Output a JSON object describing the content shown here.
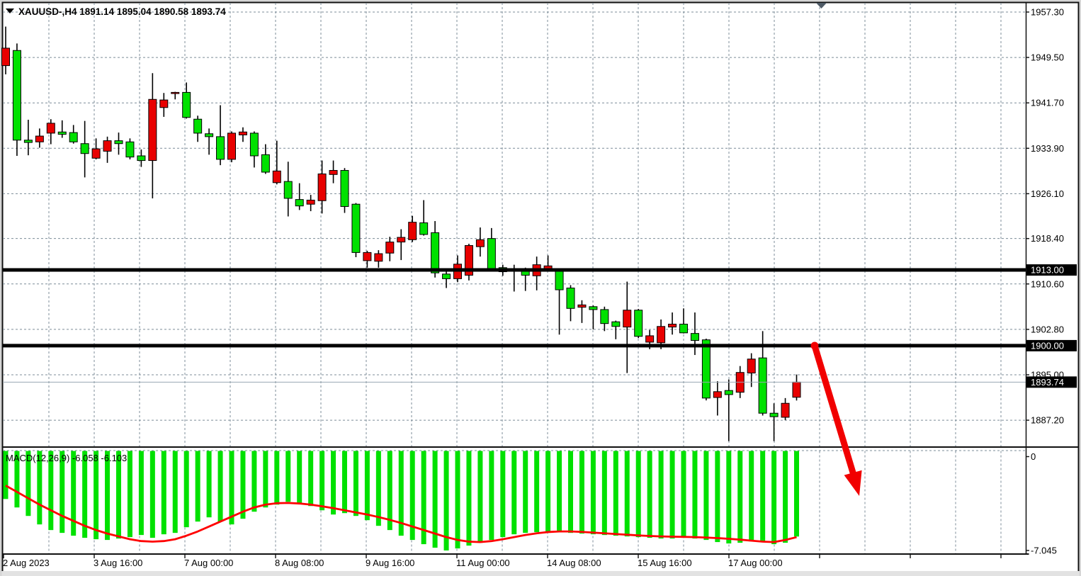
{
  "window": {
    "title_text": "XAUUSD-,H4  1891.14 1895.04 1890.58 1893.74"
  },
  "chart_data": {
    "type": "candlestick",
    "symbol": "XAUUSD-",
    "timeframe": "H4",
    "title_text": "XAUUSD-,H4  1891.14 1895.04 1890.58 1893.74",
    "current_bar": {
      "open": 1891.14,
      "high": 1895.04,
      "low": 1890.58,
      "close": 1893.74
    },
    "price_axis": {
      "ticks": [
        "1957.30",
        "1949.50",
        "1941.70",
        "1933.90",
        "1926.10",
        "1918.40",
        "1910.60",
        "1902.80",
        "1895.00",
        "1887.20"
      ],
      "tags": [
        {
          "value": 1913.0,
          "label": "1913.00"
        },
        {
          "value": 1900.0,
          "label": "1900.00"
        },
        {
          "value": 1893.74,
          "label": "1893.74"
        }
      ]
    },
    "time_axis": {
      "labels": [
        "2 Aug 2023",
        "3 Aug 16:00",
        "7 Aug 00:00",
        "8 Aug 08:00",
        "9 Aug 16:00",
        "11 Aug 00:00",
        "14 Aug 08:00",
        "15 Aug 16:00",
        "17 Aug 00:00"
      ]
    },
    "hlines": [
      1913.0,
      1900.0
    ],
    "bid_line": 1893.74,
    "annotation": {
      "type": "down-arrow",
      "from_price": 1900.0,
      "note": "red arrow pointing down from 1900 level"
    },
    "candles_format": [
      "open",
      "high",
      "low",
      "close"
    ],
    "candles": [
      [
        1948.1,
        1954.8,
        1946.6,
        1951.1
      ],
      [
        1950.7,
        1951.9,
        1932.6,
        1935.3
      ],
      [
        1935.3,
        1938.8,
        1932.7,
        1934.9
      ],
      [
        1935.0,
        1937.3,
        1934.0,
        1936.0
      ],
      [
        1936.5,
        1938.9,
        1934.6,
        1938.2
      ],
      [
        1936.7,
        1938.7,
        1935.7,
        1936.3
      ],
      [
        1936.6,
        1937.9,
        1934.7,
        1935.0
      ],
      [
        1934.7,
        1938.6,
        1928.9,
        1933.0
      ],
      [
        1932.2,
        1935.6,
        1932.0,
        1933.8
      ],
      [
        1933.4,
        1935.9,
        1931.4,
        1935.2
      ],
      [
        1935.2,
        1936.6,
        1932.8,
        1934.7
      ],
      [
        1935.0,
        1935.6,
        1932.0,
        1932.4
      ],
      [
        1932.6,
        1933.7,
        1930.7,
        1931.8
      ],
      [
        1931.8,
        1946.8,
        1925.3,
        1942.3
      ],
      [
        1940.9,
        1943.4,
        1939.3,
        1942.2
      ],
      [
        1943.3,
        1943.6,
        1942.3,
        1943.5
      ],
      [
        1943.5,
        1945.2,
        1939.0,
        1939.2
      ],
      [
        1938.9,
        1939.5,
        1935.0,
        1936.5
      ],
      [
        1936.4,
        1937.3,
        1932.8,
        1935.9
      ],
      [
        1935.9,
        1941.3,
        1931.0,
        1932.0
      ],
      [
        1932.0,
        1936.8,
        1931.5,
        1936.5
      ],
      [
        1936.2,
        1937.5,
        1935.0,
        1936.7
      ],
      [
        1936.5,
        1936.8,
        1930.6,
        1932.6
      ],
      [
        1932.8,
        1934.6,
        1929.5,
        1929.8
      ],
      [
        1928.0,
        1935.2,
        1927.7,
        1930.0
      ],
      [
        1928.2,
        1931.6,
        1922.2,
        1925.3
      ],
      [
        1925.1,
        1927.9,
        1923.3,
        1924.0
      ],
      [
        1924.3,
        1925.9,
        1923.1,
        1925.0
      ],
      [
        1924.9,
        1931.8,
        1922.7,
        1929.5
      ],
      [
        1929.4,
        1931.8,
        1927.9,
        1930.1
      ],
      [
        1930.1,
        1930.5,
        1922.8,
        1923.9
      ],
      [
        1924.3,
        1924.5,
        1915.2,
        1916.0
      ],
      [
        1914.6,
        1916.3,
        1913.4,
        1916.0
      ],
      [
        1914.5,
        1916.4,
        1913.4,
        1915.8
      ],
      [
        1915.9,
        1918.7,
        1914.5,
        1917.8
      ],
      [
        1917.8,
        1920.0,
        1914.7,
        1918.6
      ],
      [
        1918.2,
        1922.3,
        1917.8,
        1921.2
      ],
      [
        1921.1,
        1925.0,
        1918.9,
        1919.1
      ],
      [
        1919.4,
        1921.4,
        1911.7,
        1912.5
      ],
      [
        1912.3,
        1912.8,
        1909.9,
        1911.5
      ],
      [
        1911.5,
        1915.5,
        1910.9,
        1914.0
      ],
      [
        1912.1,
        1917.5,
        1911.2,
        1917.2
      ],
      [
        1917.0,
        1920.3,
        1915.3,
        1918.2
      ],
      [
        1918.4,
        1920.2,
        1912.8,
        1913.1
      ],
      [
        1913.4,
        1913.9,
        1912.0,
        1912.7
      ],
      [
        1912.9,
        1913.9,
        1909.3,
        1913.2
      ],
      [
        1913.0,
        1913.4,
        1909.4,
        1912.1
      ],
      [
        1912.0,
        1915.3,
        1909.5,
        1913.9
      ],
      [
        1913.1,
        1915.5,
        1912.7,
        1913.7
      ],
      [
        1913.1,
        1913.3,
        1901.9,
        1909.6
      ],
      [
        1909.9,
        1910.4,
        1904.2,
        1906.4
      ],
      [
        1906.6,
        1907.8,
        1903.9,
        1907.0
      ],
      [
        1906.7,
        1906.9,
        1902.8,
        1906.2
      ],
      [
        1906.2,
        1906.7,
        1902.5,
        1903.8
      ],
      [
        1904.1,
        1904.3,
        1901.1,
        1903.3
      ],
      [
        1903.2,
        1911.0,
        1895.3,
        1906.1
      ],
      [
        1906.1,
        1906.3,
        1901.3,
        1901.6
      ],
      [
        1900.6,
        1902.7,
        1899.4,
        1901.7
      ],
      [
        1900.5,
        1904.5,
        1899.4,
        1903.3
      ],
      [
        1903.2,
        1905.7,
        1901.9,
        1903.7
      ],
      [
        1903.7,
        1906.4,
        1902.1,
        1902.2
      ],
      [
        1902.1,
        1905.7,
        1898.4,
        1900.9
      ],
      [
        1901.0,
        1901.2,
        1890.6,
        1891.0
      ],
      [
        1891.1,
        1893.9,
        1888.0,
        1892.1
      ],
      [
        1892.3,
        1894.2,
        1883.6,
        1891.6
      ],
      [
        1892.0,
        1896.5,
        1891.0,
        1895.4
      ],
      [
        1895.3,
        1898.7,
        1892.9,
        1897.7
      ],
      [
        1897.9,
        1902.5,
        1888.0,
        1888.4
      ],
      [
        1888.4,
        1890.1,
        1883.6,
        1887.8
      ],
      [
        1887.7,
        1891.0,
        1887.2,
        1890.1
      ],
      [
        1891.14,
        1895.04,
        1890.58,
        1893.74
      ]
    ],
    "macd": {
      "label_text": "MACD(12,26,9) -6.058 -6.103",
      "params": "12,26,9",
      "current_macd": -6.058,
      "current_signal": -6.103,
      "axis_labels": [
        {
          "label": "0",
          "value": 0
        },
        {
          "label": "-7.045",
          "value": -7.045
        }
      ],
      "histogram": [
        -3.4,
        -4.0,
        -4.6,
        -5.2,
        -5.6,
        -5.8,
        -6.0,
        -6.15,
        -6.25,
        -6.3,
        -6.2,
        -6.1,
        -5.95,
        -6.15,
        -5.9,
        -5.8,
        -5.4,
        -5.0,
        -4.7,
        -5.0,
        -5.2,
        -4.8,
        -4.3,
        -4.0,
        -3.8,
        -3.6,
        -3.7,
        -3.9,
        -4.2,
        -4.5,
        -4.4,
        -4.6,
        -4.9,
        -5.3,
        -5.6,
        -6.0,
        -6.3,
        -6.6,
        -6.85,
        -7.045,
        -6.9,
        -6.7,
        -6.5,
        -6.3,
        -6.1,
        -5.9,
        -5.8,
        -5.75,
        -5.7,
        -5.75,
        -5.8,
        -5.85,
        -5.9,
        -5.95,
        -6.0,
        -6.05,
        -6.1,
        -6.15,
        -6.2,
        -6.2,
        -6.15,
        -6.2,
        -6.3,
        -6.45,
        -6.55,
        -6.5,
        -6.4,
        -6.45,
        -6.6,
        -6.5,
        -6.058
      ],
      "signal": [
        -2.45,
        -2.9,
        -3.35,
        -3.8,
        -4.2,
        -4.6,
        -4.95,
        -5.3,
        -5.6,
        -5.85,
        -6.05,
        -6.25,
        -6.38,
        -6.42,
        -6.38,
        -6.25,
        -6.0,
        -5.7,
        -5.35,
        -5.0,
        -4.65,
        -4.3,
        -4.0,
        -3.8,
        -3.7,
        -3.68,
        -3.72,
        -3.8,
        -3.92,
        -4.05,
        -4.2,
        -4.35,
        -4.5,
        -4.68,
        -4.88,
        -5.1,
        -5.35,
        -5.6,
        -5.85,
        -6.1,
        -6.3,
        -6.42,
        -6.45,
        -6.38,
        -6.25,
        -6.1,
        -5.95,
        -5.83,
        -5.74,
        -5.7,
        -5.7,
        -5.73,
        -5.78,
        -5.83,
        -5.88,
        -5.93,
        -5.98,
        -6.02,
        -6.05,
        -6.07,
        -6.08,
        -6.1,
        -6.13,
        -6.17,
        -6.22,
        -6.28,
        -6.35,
        -6.42,
        -6.45,
        -6.3,
        -6.103
      ]
    },
    "colors": {
      "bull_candle": "#e80000",
      "bear_candle": "#00e100",
      "candle_outline": "#000000",
      "macd_histogram": "#00e100",
      "macd_signal": "#ff0000",
      "grid": "#7c8c98",
      "level_line": "#000000",
      "bid_line": "#9aa7b2",
      "tag_bg": "#000000",
      "tag_text": "#ffffff",
      "arrow": "#f10000",
      "shift_marker": "#4e5a66",
      "background": "#ffffff"
    }
  }
}
